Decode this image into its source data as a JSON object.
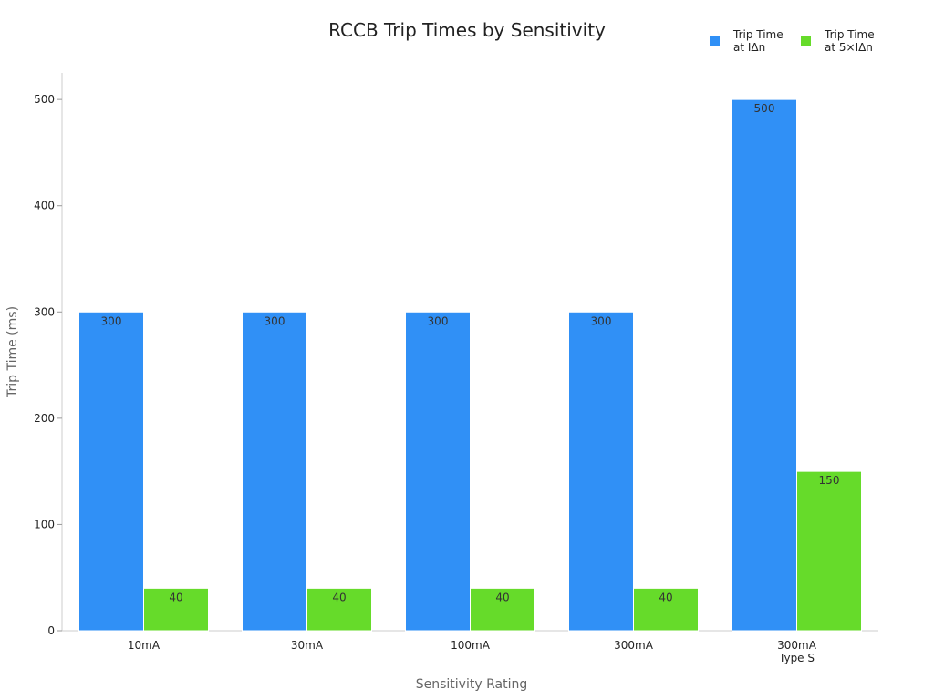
{
  "chart_data": {
    "type": "bar",
    "title": "RCCB Trip Times by Sensitivity",
    "x_label": "Sensitivity Rating",
    "y_label": "Trip Time (ms)",
    "categories": [
      "10mA",
      "30mA",
      "100mA",
      "300mA",
      "300mA\nType S"
    ],
    "series": [
      {
        "name": "Trip Time\nat IΔn",
        "color": "#3090f6",
        "values": [
          300,
          300,
          300,
          300,
          500
        ]
      },
      {
        "name": "Trip Time\nat 5×IΔn",
        "color": "#66db2a",
        "values": [
          40,
          40,
          40,
          40,
          150
        ]
      }
    ],
    "ylim": [
      0,
      525
    ],
    "yticks": [
      0,
      100,
      200,
      300,
      400,
      500
    ],
    "legend": "top-right"
  }
}
